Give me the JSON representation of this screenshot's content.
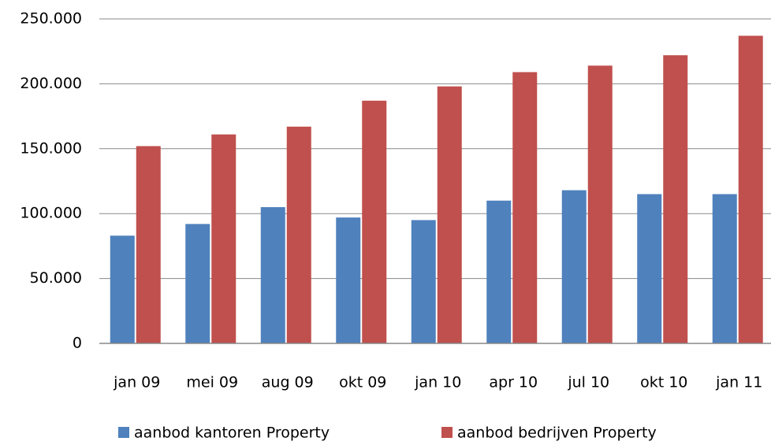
{
  "chart_data": {
    "type": "bar",
    "categories": [
      "jan 09",
      "mei 09",
      "aug 09",
      "okt 09",
      "jan 10",
      "apr 10",
      "jul 10",
      "okt 10",
      "jan 11"
    ],
    "series": [
      {
        "name": "aanbod kantoren Property",
        "color": "#4f81bd",
        "values": [
          83000,
          92000,
          105000,
          97000,
          95000,
          110000,
          118000,
          115000,
          115000
        ]
      },
      {
        "name": "aanbod bedrijven Property",
        "color": "#c0504d",
        "values": [
          152000,
          161000,
          167000,
          187000,
          198000,
          209000,
          214000,
          222000,
          237000
        ]
      }
    ],
    "ylim": [
      0,
      250000
    ],
    "yticks": [
      0,
      {
        "value": 50000,
        "label": "50.000"
      },
      {
        "value": 100000,
        "label": "100.000"
      },
      {
        "value": 150000,
        "label": "150.000"
      },
      {
        "value": 200000,
        "label": "200.000"
      },
      {
        "value": 250000,
        "label": "250.000"
      }
    ],
    "grid": true,
    "legend": "bottom"
  }
}
